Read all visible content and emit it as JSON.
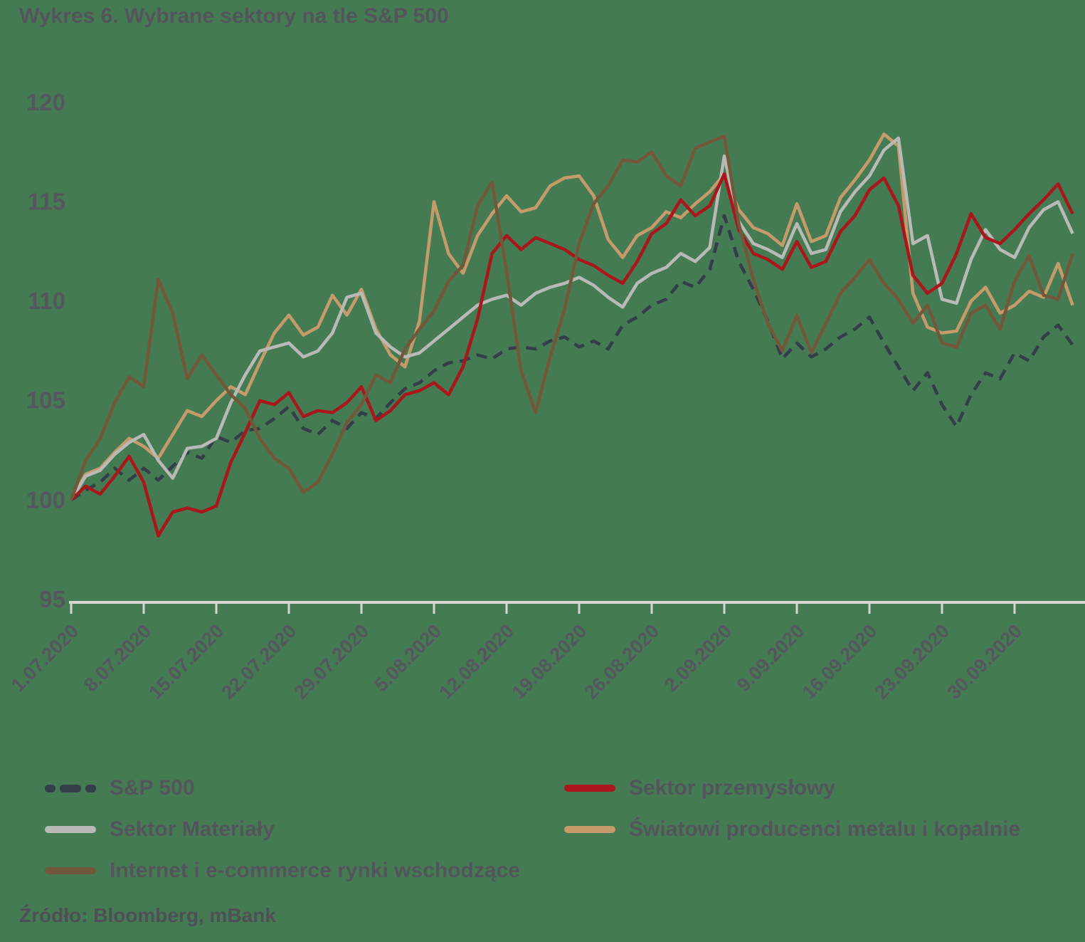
{
  "title": "Wykres 6. Wybrane sektory na tle S&P 500",
  "source": "Źródło: Bloomberg, mBank",
  "colors": {
    "background": "#447b52",
    "text": "#54555c",
    "axis_line": "#d8d6d2",
    "sp500": "#333e48",
    "industrial_red": "#a9161c",
    "materials_gray": "#b9bab5",
    "metals_tan": "#c59b6c",
    "internet_brown": "#73573a"
  },
  "legend": {
    "left_column": [
      "S&P 500",
      "Sektor Materiały",
      "Internet i e-commerce rynki wschodzące"
    ],
    "right_column": [
      "Sektor przemysłowy",
      "Światowi producenci metalu i kopalnie"
    ]
  },
  "chart_data": {
    "type": "line",
    "title": "Wykres 6. Wybrane sektory na tle S&P 500",
    "xlabel": "",
    "ylabel": "",
    "ylim": [
      95,
      120
    ],
    "yticks": [
      95,
      100,
      105,
      110,
      115,
      120
    ],
    "grid": false,
    "legend_position": "bottom",
    "x": [
      "1.07.2020",
      "2.07.2020",
      "3.07.2020",
      "6.07.2020",
      "7.07.2020",
      "8.07.2020",
      "9.07.2020",
      "10.07.2020",
      "13.07.2020",
      "14.07.2020",
      "15.07.2020",
      "16.07.2020",
      "17.07.2020",
      "20.07.2020",
      "21.07.2020",
      "22.07.2020",
      "23.07.2020",
      "24.07.2020",
      "27.07.2020",
      "28.07.2020",
      "29.07.2020",
      "30.07.2020",
      "31.07.2020",
      "3.08.2020",
      "4.08.2020",
      "5.08.2020",
      "6.08.2020",
      "7.08.2020",
      "10.08.2020",
      "11.08.2020",
      "12.08.2020",
      "13.08.2020",
      "14.08.2020",
      "17.08.2020",
      "18.08.2020",
      "19.08.2020",
      "20.08.2020",
      "21.08.2020",
      "24.08.2020",
      "25.08.2020",
      "26.08.2020",
      "27.08.2020",
      "28.08.2020",
      "31.08.2020",
      "1.09.2020",
      "2.09.2020",
      "3.09.2020",
      "4.09.2020",
      "7.09.2020",
      "8.09.2020",
      "9.09.2020",
      "10.09.2020",
      "11.09.2020",
      "14.09.2020",
      "15.09.2020",
      "16.09.2020",
      "17.09.2020",
      "18.09.2020",
      "21.09.2020",
      "22.09.2020",
      "23.09.2020",
      "24.09.2020",
      "25.09.2020",
      "28.09.2020",
      "29.09.2020",
      "30.09.2020",
      "1.10.2020",
      "2.10.2020",
      "5.10.2020",
      "6.10.2020"
    ],
    "x_tick_labels": [
      "1.07.2020",
      "8.07.2020",
      "15.07.2020",
      "22.07.2020",
      "29.07.2020",
      "5.08.2020",
      "12.08.2020",
      "19.08.2020",
      "26.08.2020",
      "2.09.2020",
      "9.09.2020",
      "16.09.2020",
      "23.09.2020",
      "30.09.2020"
    ],
    "x_tick_every": 5,
    "series": [
      {
        "name": "S&P 500",
        "color": "#333e48",
        "dash": true,
        "values": [
          100,
          100.5,
          100.9,
          101.6,
          101,
          101.6,
          101,
          101.7,
          102.4,
          102.1,
          103.2,
          102.9,
          103.5,
          103.6,
          104.1,
          104.7,
          103.6,
          103.3,
          104,
          103.6,
          104.4,
          104.1,
          104.9,
          105.6,
          105.9,
          106.5,
          106.9,
          107,
          107.3,
          107.1,
          107.6,
          107.7,
          107.6,
          108,
          108.2,
          107.7,
          108,
          107.6,
          108.8,
          109.2,
          109.8,
          110.1,
          111,
          110.7,
          111.6,
          114.3,
          112,
          110.6,
          109,
          107.1,
          107.9,
          107.2,
          107.6,
          108.2,
          108.6,
          109.2,
          107.9,
          106.7,
          105.5,
          106.4,
          104.8,
          103.7,
          105.3,
          106.4,
          106.1,
          107.4,
          107,
          108.2,
          108.8,
          107.8
        ]
      },
      {
        "name": "Sektor przemysłowy",
        "color": "#a9161c",
        "dash": false,
        "values": [
          100,
          100.7,
          100.3,
          101.2,
          102.2,
          100.9,
          98.2,
          99.4,
          99.6,
          99.4,
          99.7,
          101.9,
          103.4,
          105,
          104.8,
          105.4,
          104.2,
          104.5,
          104.4,
          104.9,
          105.7,
          104,
          104.5,
          105.3,
          105.5,
          105.9,
          105.3,
          106.7,
          109.1,
          112.4,
          113.3,
          112.6,
          113.2,
          112.9,
          112.6,
          112.1,
          111.8,
          111.3,
          110.9,
          112,
          113.4,
          113.9,
          115.1,
          114.3,
          114.8,
          116.4,
          113.6,
          112.4,
          112.1,
          111.6,
          113,
          111.7,
          112,
          113.5,
          114.3,
          115.6,
          116.2,
          114.8,
          111.3,
          110.4,
          110.9,
          112.4,
          114.4,
          113.2,
          112.9,
          113.6,
          114.4,
          115.1,
          115.9,
          114.4
        ]
      },
      {
        "name": "Sektor Materiały",
        "color": "#b9bab5",
        "dash": false,
        "values": [
          100,
          101.2,
          101.5,
          102.3,
          102.9,
          103.3,
          102,
          101.1,
          102.6,
          102.7,
          103.1,
          104.9,
          106.3,
          107.5,
          107.7,
          107.9,
          107.2,
          107.5,
          108.4,
          110.2,
          110.4,
          108.4,
          107.7,
          107.2,
          107.4,
          108,
          108.6,
          109.2,
          109.8,
          110.1,
          110.3,
          109.8,
          110.4,
          110.7,
          110.9,
          111.2,
          110.8,
          110.2,
          109.7,
          110.9,
          111.4,
          111.7,
          112.4,
          112,
          112.7,
          117.3,
          114,
          112.9,
          112.6,
          112.2,
          113.9,
          112.4,
          112.6,
          114.5,
          115.5,
          116.3,
          117.6,
          118.2,
          112.9,
          113.3,
          110.1,
          109.9,
          112.1,
          113.6,
          112.6,
          112.2,
          113.7,
          114.6,
          115,
          113.4
        ]
      },
      {
        "name": "Światowi producenci metalu i kopalnie",
        "color": "#c59b6c",
        "dash": false,
        "values": [
          100,
          101.3,
          101.6,
          102.4,
          103.1,
          102.7,
          102.1,
          103.3,
          104.5,
          104.2,
          105,
          105.7,
          105.3,
          106.9,
          108.4,
          109.3,
          108.3,
          108.7,
          110.3,
          109.3,
          110.6,
          108.6,
          107.3,
          106.7,
          109,
          115,
          112.4,
          111.4,
          113.3,
          114.4,
          115.3,
          114.5,
          114.7,
          115.8,
          116.2,
          116.3,
          115.3,
          113.1,
          112.2,
          113.3,
          113.7,
          114.5,
          114.2,
          114.9,
          115.5,
          116.4,
          114.6,
          113.7,
          113.4,
          112.8,
          114.9,
          113,
          113.3,
          115.2,
          116.1,
          117.1,
          118.4,
          117.8,
          110.4,
          108.7,
          108.4,
          108.5,
          110,
          110.7,
          109.4,
          109.8,
          110.5,
          110.2,
          111.9,
          109.8
        ]
      },
      {
        "name": "Internet i e-commerce rynki wschodzące",
        "color": "#73573a",
        "dash": false,
        "values": [
          100,
          102,
          103.1,
          104.9,
          106.2,
          105.7,
          111.1,
          109.4,
          106.1,
          107.3,
          106.3,
          105.3,
          104.6,
          103.1,
          102.1,
          101.6,
          100.4,
          100.9,
          102.3,
          103.9,
          104.8,
          106.3,
          105.9,
          107.6,
          108.6,
          109.5,
          111,
          111.8,
          114.8,
          116,
          111.5,
          106.5,
          104.4,
          107.2,
          109.6,
          112.9,
          114.9,
          115.8,
          117.1,
          117,
          117.5,
          116.3,
          115.8,
          117.7,
          118,
          118.3,
          113.9,
          111.1,
          108.9,
          107.5,
          109.3,
          107.4,
          108.9,
          110.4,
          111.2,
          112.1,
          110.9,
          110.1,
          108.9,
          109.8,
          107.9,
          107.7,
          109.4,
          109.8,
          108.6,
          111,
          112.3,
          110.3,
          110.1,
          112.4
        ]
      }
    ]
  }
}
